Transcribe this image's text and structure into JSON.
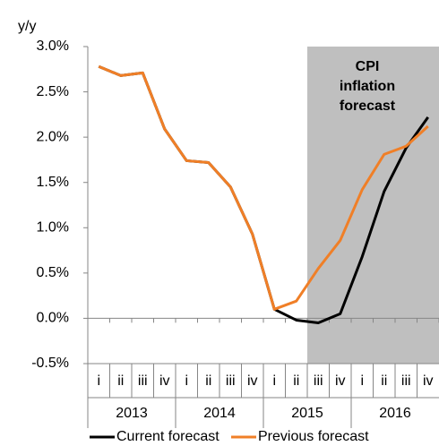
{
  "chart_data": {
    "type": "line",
    "y_label": "y/y",
    "annotation": [
      "CPI",
      "inflation",
      "forecast"
    ],
    "categories": [
      "i",
      "ii",
      "iii",
      "iv",
      "i",
      "ii",
      "iii",
      "iv",
      "i",
      "ii",
      "iii",
      "iv",
      "i",
      "ii",
      "iii",
      "iv"
    ],
    "year_groups": [
      "2013",
      "2014",
      "2015",
      "2016"
    ],
    "series": [
      {
        "name": "Current forecast",
        "color": "#000000",
        "values": [
          2.78,
          2.68,
          2.71,
          2.09,
          1.74,
          1.72,
          1.45,
          0.93,
          0.1,
          -0.02,
          -0.05,
          0.05,
          0.68,
          1.4,
          1.88,
          2.22
        ]
      },
      {
        "name": "Previous forecast",
        "color": "#f07f27",
        "values": [
          2.78,
          2.68,
          2.71,
          2.09,
          1.74,
          1.72,
          1.45,
          0.93,
          0.1,
          0.19,
          0.55,
          0.86,
          1.42,
          1.81,
          1.9,
          2.12
        ]
      }
    ],
    "ylim": [
      -0.5,
      3.0
    ],
    "yticks": [
      {
        "value": -0.5,
        "label": "-0.5%"
      },
      {
        "value": 0,
        "label": "0.0%"
      },
      {
        "value": 0.5,
        "label": "0.5%"
      },
      {
        "value": 1.0,
        "label": "1.0%"
      },
      {
        "value": 1.5,
        "label": "1.5%"
      },
      {
        "value": 2.0,
        "label": "2.0%"
      },
      {
        "value": 2.5,
        "label": "2.5%"
      },
      {
        "value": 3.0,
        "label": "3.0%"
      }
    ],
    "legend": "bottom"
  }
}
